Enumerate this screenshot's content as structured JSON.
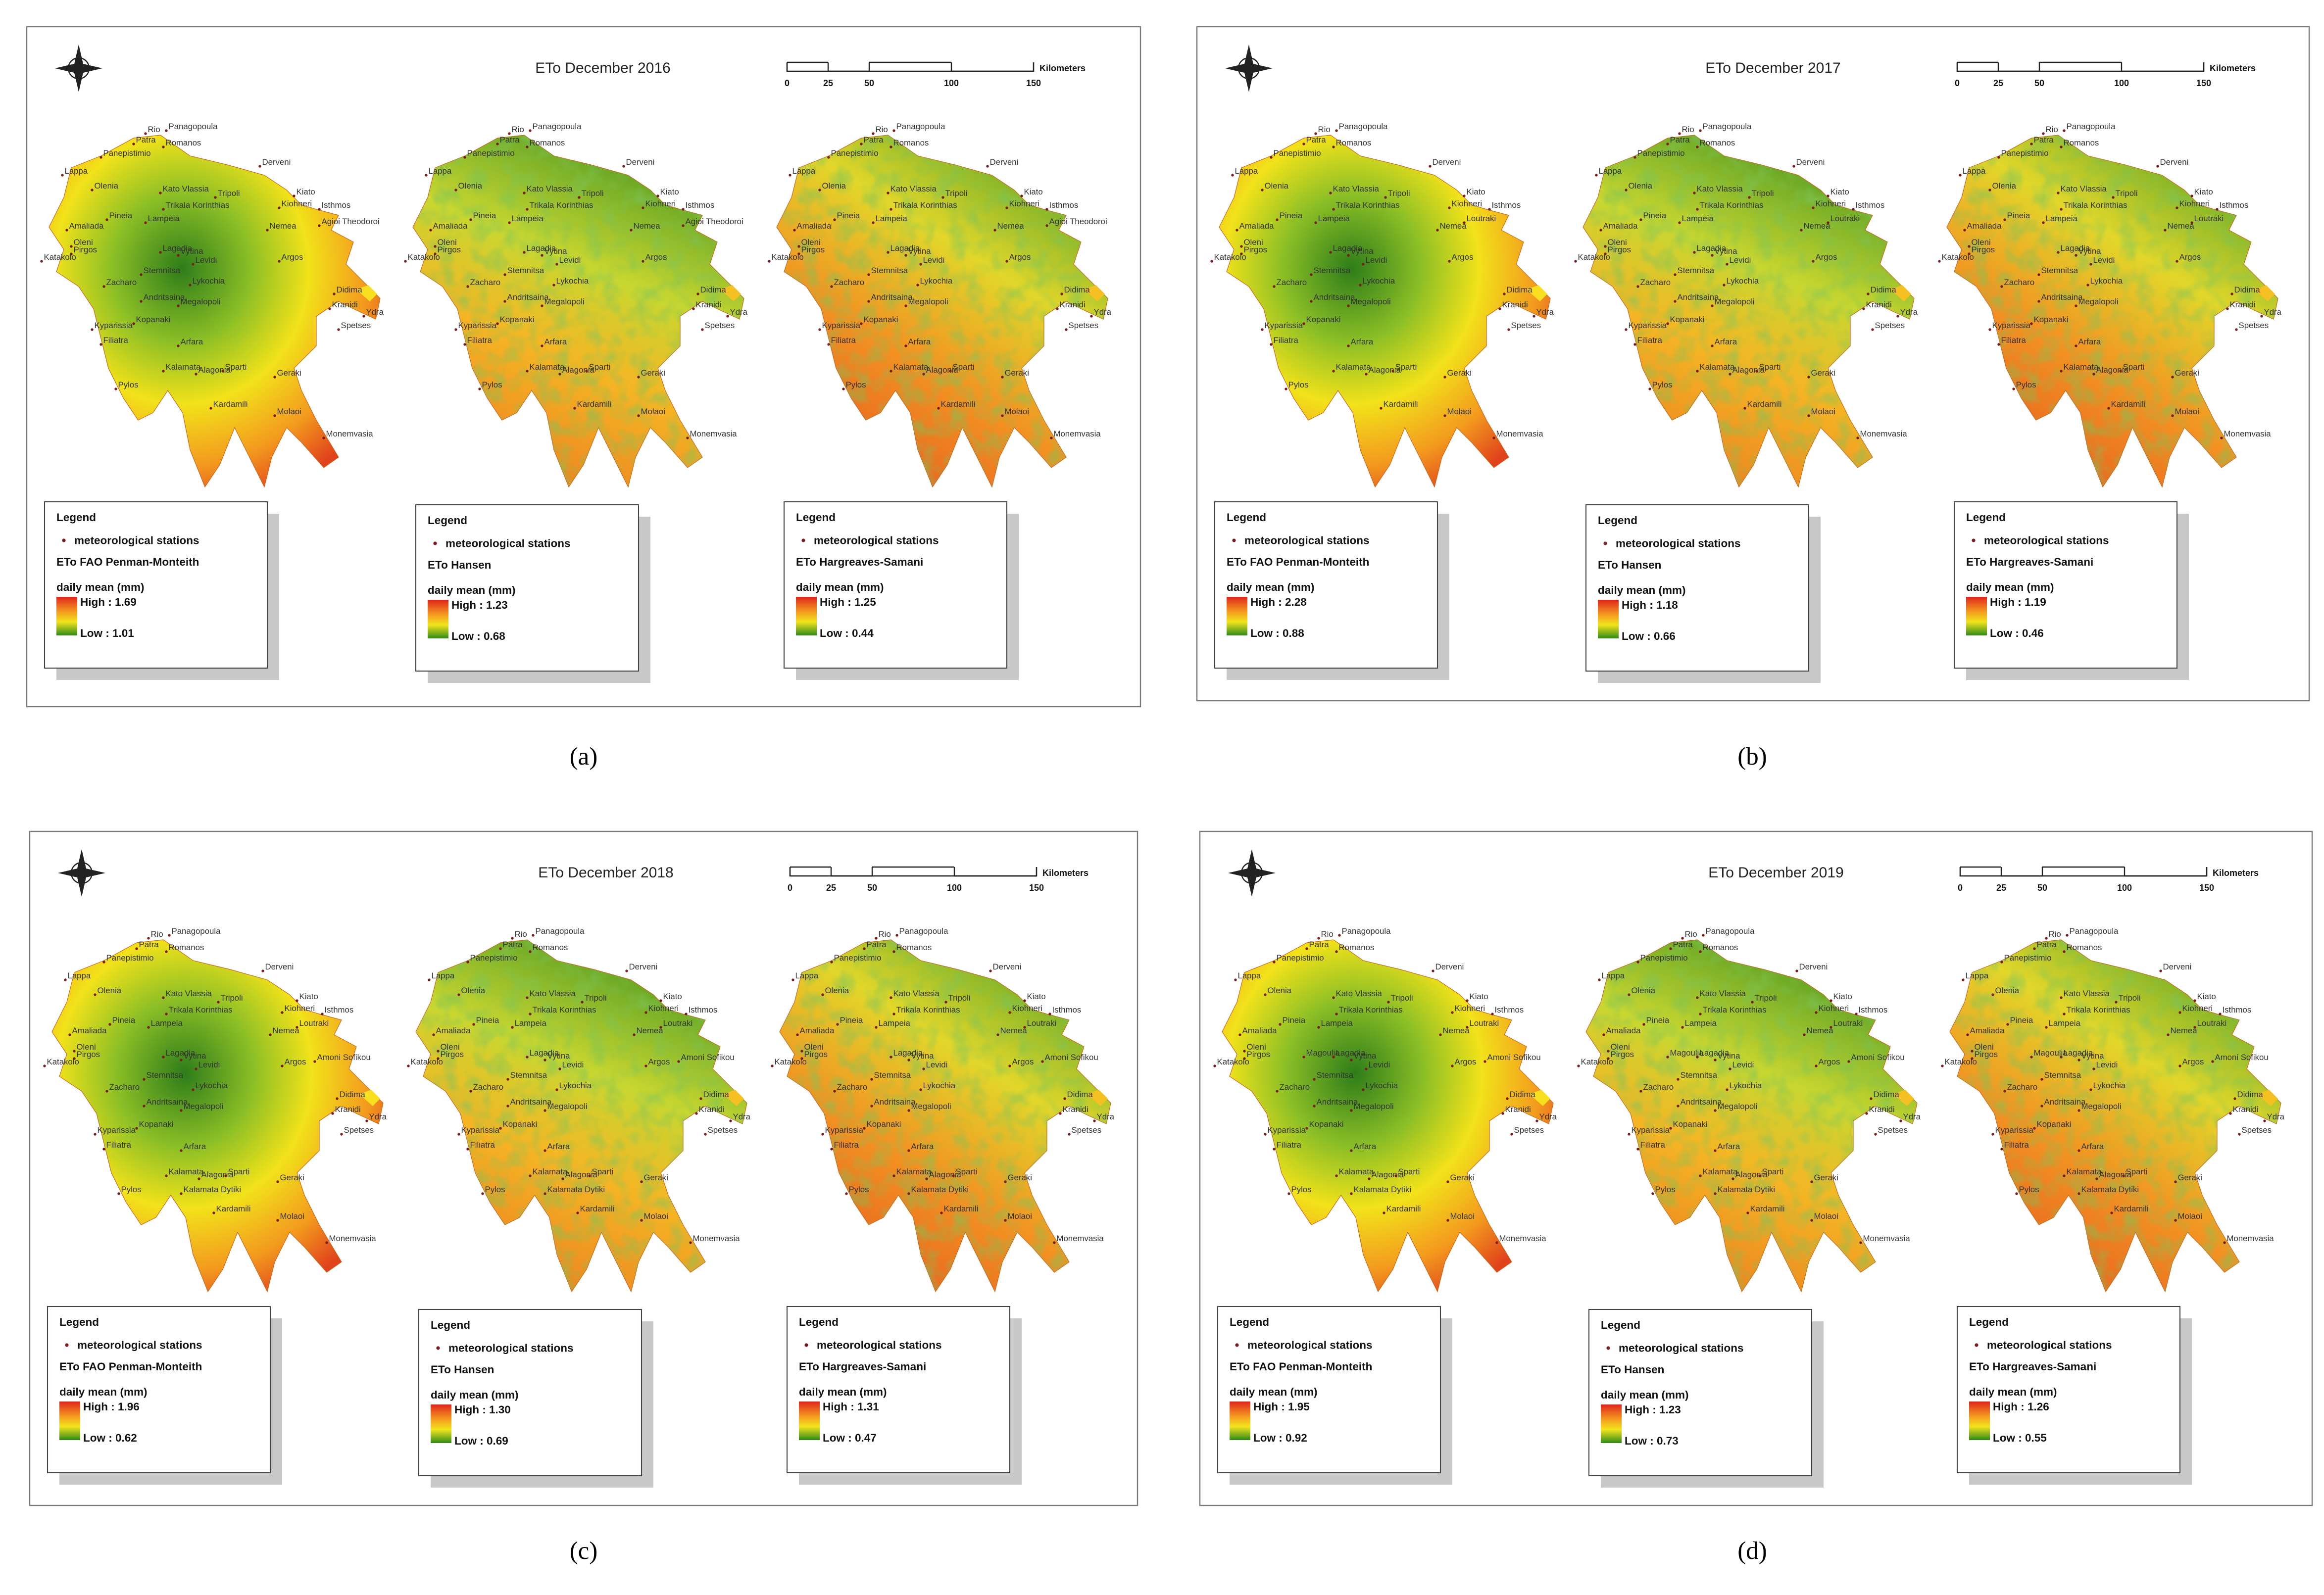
{
  "stations": [
    "Rio",
    "Patra",
    "Panagopoula",
    "Romanos",
    "Panepistimio",
    "Derveni",
    "Lappa",
    "Olenia",
    "Kato Vlassia",
    "Tripoli",
    "Kiato",
    "Isthmos",
    "Kiohneri",
    "Trikala Korinthias",
    "Pineia",
    "Lampeia",
    "Nemea",
    "Amaliada",
    "Oleni",
    "Pirgos",
    "Katakolo",
    "Lagadia",
    "Vytina",
    "Levidi",
    "Argos",
    "Stemnitsa",
    "Zacharo",
    "Lykochia",
    "Andritsaina",
    "Megalopoli",
    "Didima",
    "Kranidi",
    "Ydra",
    "Spetses",
    "Kopanaki",
    "Kyparissia",
    "Filiatra",
    "Arfara",
    "Kalamata",
    "Alagonia",
    "Sparti",
    "Geraki",
    "Pylos",
    "Kardamili",
    "Molaoi",
    "Monemvasia"
  ],
  "panels": [
    {
      "title": "ETo December 2016",
      "caption": "(a)",
      "scale": {
        "ticks": [
          0,
          25,
          50,
          100,
          150
        ],
        "unit": "Kilometers"
      },
      "extra_stations": [
        "Agioi Theodoroi"
      ],
      "maps": [
        {
          "legend": {
            "title": "Legend",
            "stations_label": "meteorological stations",
            "method": "ETo FAO Penman-Monteith",
            "unit": "daily mean (mm)",
            "high": "High : 1.69",
            "low": "Low : 1.01"
          }
        },
        {
          "legend": {
            "title": "Legend",
            "stations_label": "meteorological stations",
            "method": "ETo Hansen",
            "unit": "daily mean (mm)",
            "high": "High : 1.23",
            "low": "Low : 0.68"
          }
        },
        {
          "legend": {
            "title": "Legend",
            "stations_label": "meteorological stations",
            "method": "ETo Hargreaves-Samani",
            "unit": "daily mean (mm)",
            "high": "High : 1.25",
            "low": "Low : 0.44"
          }
        }
      ]
    },
    {
      "title": "ETo December 2017",
      "caption": "(b)",
      "scale": {
        "ticks": [
          0,
          25,
          50,
          100,
          150
        ],
        "unit": "Kilometers"
      },
      "extra_stations": [
        "Loutraki"
      ],
      "maps": [
        {
          "legend": {
            "title": "Legend",
            "stations_label": "meteorological stations",
            "method": "ETo FAO Penman-Monteith",
            "unit": "daily mean (mm)",
            "high": "High : 2.28",
            "low": "Low : 0.88"
          }
        },
        {
          "legend": {
            "title": "Legend",
            "stations_label": "meteorological stations",
            "method": "ETo Hansen",
            "unit": "daily mean (mm)",
            "high": "High : 1.18",
            "low": "Low : 0.66"
          }
        },
        {
          "legend": {
            "title": "Legend",
            "stations_label": "meteorological stations",
            "method": "ETo Hargreaves-Samani",
            "unit": "daily mean (mm)",
            "high": "High : 1.19",
            "low": "Low : 0.46"
          }
        }
      ]
    },
    {
      "title": "ETo December 2018",
      "caption": "(c)",
      "scale": {
        "ticks": [
          0,
          25,
          50,
          100,
          150
        ],
        "unit": "Kilometers"
      },
      "extra_stations": [
        "Loutraki",
        "Amoni Sofikou",
        "Kalamata Dytiki"
      ],
      "maps": [
        {
          "legend": {
            "title": "Legend",
            "stations_label": "meteorological stations",
            "method": "ETo FAO Penman-Monteith",
            "unit": "daily mean (mm)",
            "high": "High : 1.96",
            "low": "Low : 0.62"
          }
        },
        {
          "legend": {
            "title": "Legend",
            "stations_label": "meteorological stations",
            "method": "ETo Hansen",
            "unit": "daily mean (mm)",
            "high": "High : 1.30",
            "low": "Low : 0.69"
          }
        },
        {
          "legend": {
            "title": "Legend",
            "stations_label": "meteorological stations",
            "method": "ETo Hargreaves-Samani",
            "unit": "daily mean (mm)",
            "high": "High : 1.31",
            "low": "Low : 0.47"
          }
        }
      ]
    },
    {
      "title": "ETo December 2019",
      "caption": "(d)",
      "scale": {
        "ticks": [
          0,
          25,
          50,
          100,
          150
        ],
        "unit": "Kilometers"
      },
      "extra_stations": [
        "Loutraki",
        "Amoni Sofikou",
        "Kalamata Dytiki",
        "Magoulia"
      ],
      "maps": [
        {
          "legend": {
            "title": "Legend",
            "stations_label": "meteorological stations",
            "method": "ETo FAO Penman-Monteith",
            "unit": "daily mean (mm)",
            "high": "High : 1.95",
            "low": "Low : 0.92"
          }
        },
        {
          "legend": {
            "title": "Legend",
            "stations_label": "meteorological stations",
            "method": "ETo Hansen",
            "unit": "daily mean (mm)",
            "high": "High : 1.23",
            "low": "Low : 0.73"
          }
        },
        {
          "legend": {
            "title": "Legend",
            "stations_label": "meteorological stations",
            "method": "ETo Hargreaves-Samani",
            "unit": "daily mean (mm)",
            "high": "High : 1.26",
            "low": "Low : 0.55"
          }
        }
      ]
    }
  ]
}
